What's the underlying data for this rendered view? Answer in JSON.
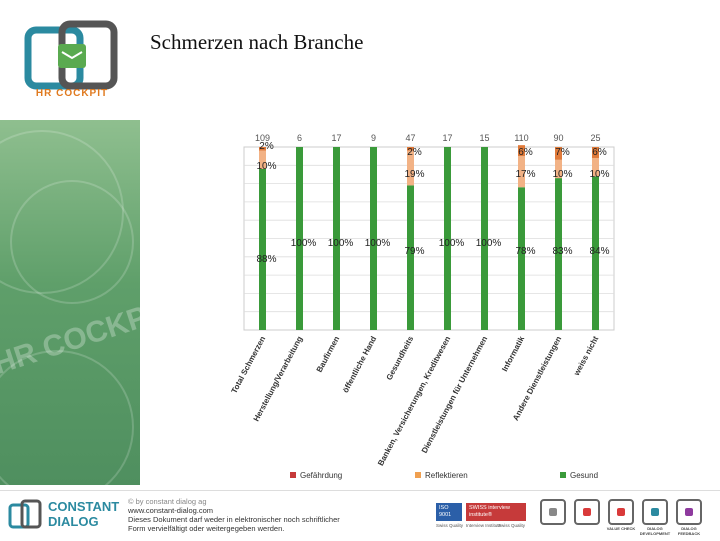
{
  "slide": {
    "title": "Schmerzen nach Branche"
  },
  "logo": {
    "label": "HR COCKPIT"
  },
  "footer": {
    "brand_line1": "CONSTANT",
    "brand_line2": "DIALOG",
    "copy_line1": "© by constant dialog ag",
    "copy_line2": "www.constant-dialog.com",
    "copy_line3": "Dieses Dokument darf weder in elektronischer noch schriftlicher",
    "copy_line4": "Form vervielfältigt oder weitergegeben werden.",
    "badge1": "ISO 9001",
    "badge2": "SWISS interview institute®",
    "badge1_caption": "Swiss Quality",
    "badge2_caption": "Interview Institute",
    "badge3_caption": "Swiss Quality",
    "products": [
      "",
      "",
      "VALUE CHECK",
      "DIALOG DEVELOPMENT",
      "DIALOG FEEDBACK"
    ],
    "product_colors": [
      "#888888",
      "#d93a3a",
      "#d93a3a",
      "#2b8aa0",
      "#8e3a9e"
    ]
  },
  "chart_data": {
    "type": "bar",
    "stacked": true,
    "percent": true,
    "categories": [
      "Total Schmerzen",
      "Herstellung/Verarbeitung",
      "Baufirmen",
      "öffentliche Hand",
      "Gesundheits",
      "Banken, Versicherungen, Kreditwesen",
      "Dienstleistungen für Unternehmen",
      "Informatik",
      "Andere Dienstleistungen",
      "weiss nicht"
    ],
    "n_values": [
      "109",
      "6",
      "17",
      "9",
      "47",
      "17",
      "15",
      "110",
      "90",
      "25"
    ],
    "series": [
      {
        "name": "Gesund",
        "color": "#3a9a3a",
        "values": [
          88,
          100,
          100,
          100,
          79,
          100,
          100,
          78,
          83,
          84
        ],
        "labels": [
          "88%",
          "100%",
          "100%",
          "100%",
          "79%",
          "100%",
          "100%",
          "78%",
          "83%",
          "84%"
        ]
      },
      {
        "name": "Reflektieren",
        "color": "#f2b285",
        "values": [
          10,
          0,
          0,
          0,
          19,
          0,
          0,
          17,
          10,
          10
        ],
        "labels": [
          "10%",
          "",
          "",
          "",
          "19%",
          "",
          "",
          "17%",
          "10%",
          "10%"
        ]
      },
      {
        "name": "Gefährdung",
        "color": "#e07a3a",
        "values": [
          2,
          0,
          0,
          0,
          2,
          0,
          0,
          6,
          7,
          6
        ],
        "labels": [
          "2%",
          "",
          "",
          "",
          "2%",
          "",
          "",
          "6%",
          "7%",
          "6%"
        ]
      }
    ],
    "legend_order": [
      "Gefährdung",
      "Reflektieren",
      "Gesund"
    ],
    "legend_colors": [
      "#c63a3a",
      "#f0a050",
      "#3a9a3a"
    ],
    "legend_position": "bottom",
    "ylim": [
      0,
      100
    ],
    "grid": true
  }
}
